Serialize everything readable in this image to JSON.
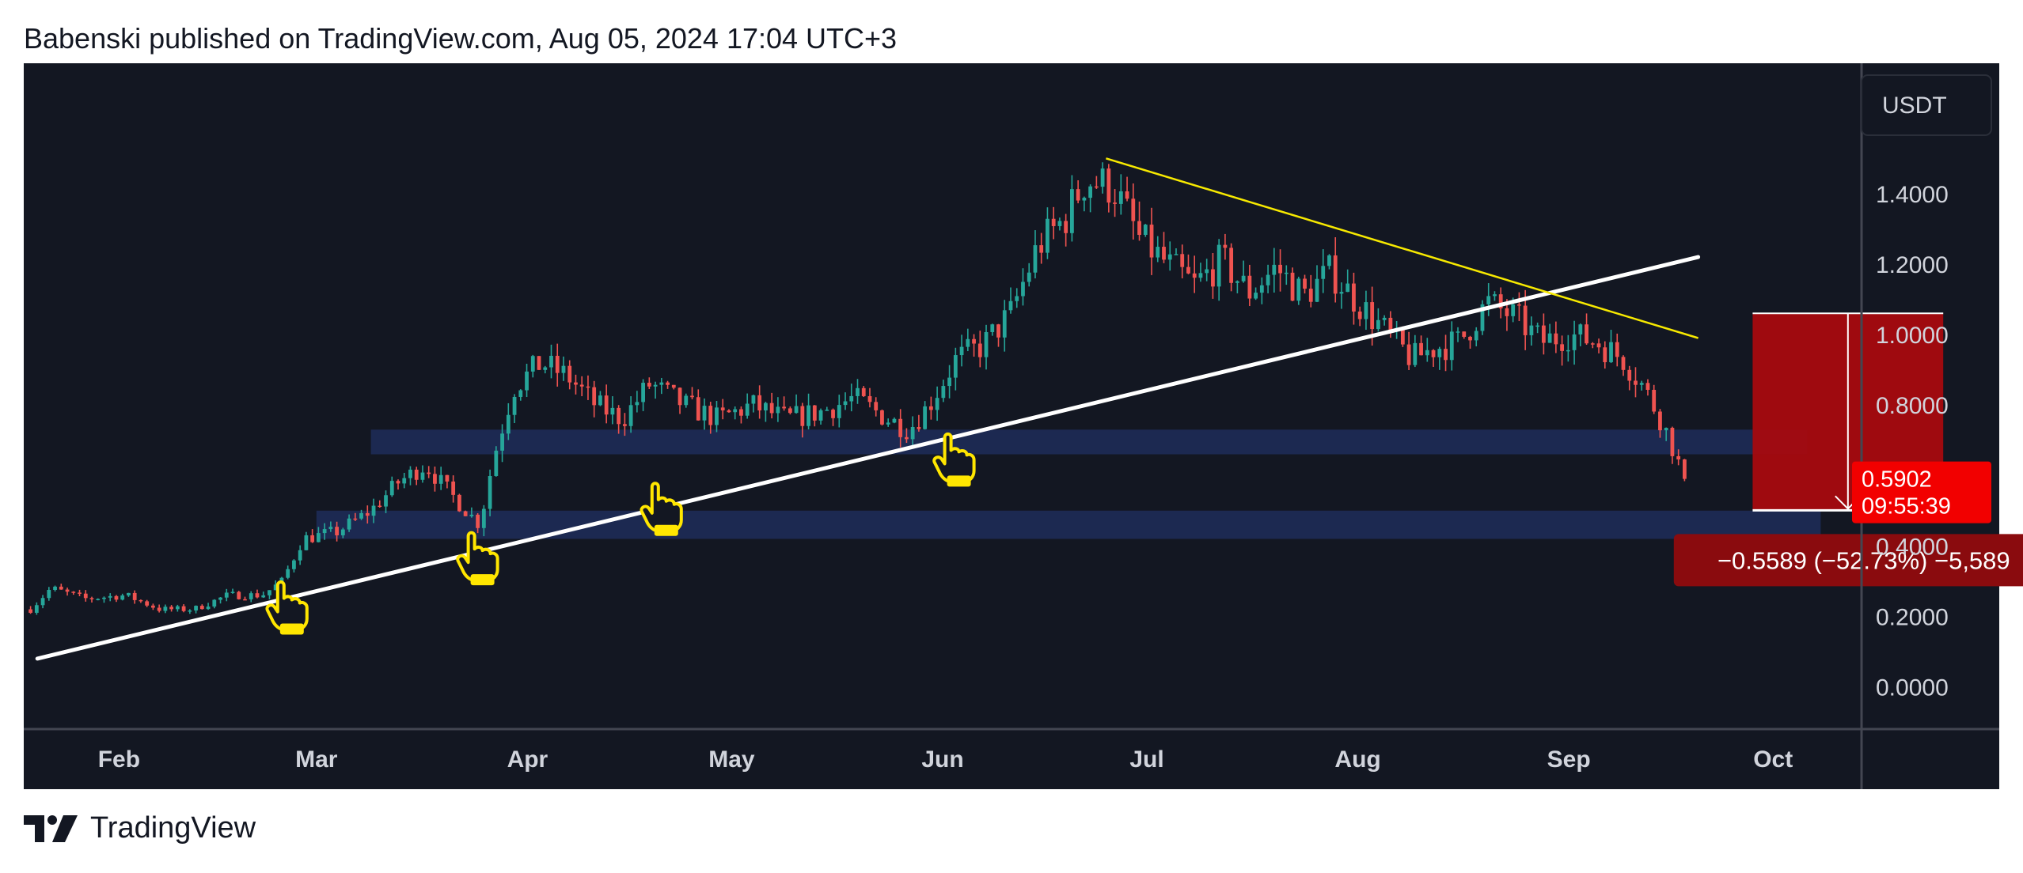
{
  "header": {
    "publish_line": "Babenski published on TradingView.com, Aug 05, 2024 17:04 UTC+3"
  },
  "footer": {
    "brand": "TradingView"
  },
  "colors": {
    "background": "#131722",
    "up_candle": "#26a69a",
    "down_candle": "#ef5350",
    "support_line": "#ffffff",
    "resistance_line": "#f7e900",
    "zone_fill": "#1e2d59",
    "target_box": "#a60a0f",
    "price_badge": "#f20000",
    "markers": "#ffe600"
  },
  "chart_data": {
    "type": "candlestick",
    "currency_label": "USDT",
    "y_axis": {
      "ticks": [
        "1.4000",
        "1.2000",
        "1.0000",
        "0.8000",
        "0.4000",
        "0.2000",
        "0.0000"
      ],
      "tick_values": [
        1.4,
        1.2,
        1.0,
        0.8,
        0.4,
        0.2,
        0.0
      ],
      "ylim": [
        -0.12,
        1.77
      ]
    },
    "x_axis": {
      "ticks": [
        "Feb",
        "Mar",
        "Apr",
        "May",
        "Jun",
        "Jul",
        "Aug",
        "Sep",
        "Oct"
      ],
      "tick_dates": [
        "2024-02-01",
        "2024-03-01",
        "2024-04-01",
        "2024-05-01",
        "2024-06-01",
        "2024-07-01",
        "2024-08-01",
        "2024-09-01",
        "2024-10-01"
      ],
      "xlim": [
        "2024-01-18",
        "2024-10-14"
      ]
    },
    "current_price": {
      "price": "0.5902",
      "countdown": "09:55:39",
      "value": 0.5902
    },
    "price_path": [
      [
        "2024-01-19",
        0.22
      ],
      [
        "2024-01-22",
        0.28
      ],
      [
        "2024-01-27",
        0.25
      ],
      [
        "2024-02-02",
        0.26
      ],
      [
        "2024-02-07",
        0.22
      ],
      [
        "2024-02-12",
        0.22
      ],
      [
        "2024-02-17",
        0.26
      ],
      [
        "2024-02-22",
        0.26
      ],
      [
        "2024-02-25",
        0.3
      ],
      [
        "2024-02-28",
        0.42
      ],
      [
        "2024-03-04",
        0.44
      ],
      [
        "2024-03-09",
        0.5
      ],
      [
        "2024-03-13",
        0.58
      ],
      [
        "2024-03-17",
        0.63
      ],
      [
        "2024-03-22",
        0.52
      ],
      [
        "2024-03-25",
        0.46
      ],
      [
        "2024-03-27",
        0.65
      ],
      [
        "2024-03-30",
        0.85
      ],
      [
        "2024-04-03",
        0.92
      ],
      [
        "2024-04-07",
        0.88
      ],
      [
        "2024-04-11",
        0.8
      ],
      [
        "2024-04-15",
        0.76
      ],
      [
        "2024-04-19",
        0.86
      ],
      [
        "2024-04-24",
        0.8
      ],
      [
        "2024-04-29",
        0.76
      ],
      [
        "2024-05-04",
        0.8
      ],
      [
        "2024-05-09",
        0.76
      ],
      [
        "2024-05-14",
        0.78
      ],
      [
        "2024-05-19",
        0.82
      ],
      [
        "2024-05-24",
        0.76
      ],
      [
        "2024-05-27",
        0.73
      ],
      [
        "2024-05-30",
        0.8
      ],
      [
        "2024-06-03",
        0.93
      ],
      [
        "2024-06-07",
        0.97
      ],
      [
        "2024-06-11",
        1.06
      ],
      [
        "2024-06-15",
        1.25
      ],
      [
        "2024-06-19",
        1.33
      ],
      [
        "2024-06-22",
        1.44
      ],
      [
        "2024-06-26",
        1.42
      ],
      [
        "2024-06-30",
        1.27
      ],
      [
        "2024-07-04",
        1.2
      ],
      [
        "2024-07-08",
        1.14
      ],
      [
        "2024-07-12",
        1.21
      ],
      [
        "2024-07-16",
        1.12
      ],
      [
        "2024-07-20",
        1.19
      ],
      [
        "2024-07-24",
        1.11
      ],
      [
        "2024-07-28",
        1.18
      ],
      [
        "2024-08-01",
        1.09
      ],
      [
        "2024-08-05",
        1.01
      ],
      [
        "2024-08-09",
        0.93
      ],
      [
        "2024-08-12",
        0.96
      ],
      [
        "2024-08-16",
        0.98
      ],
      [
        "2024-08-20",
        1.09
      ],
      [
        "2024-08-24",
        1.05
      ],
      [
        "2024-08-28",
        0.98
      ],
      [
        "2024-09-01",
        1.0
      ],
      [
        "2024-09-05",
        0.98
      ],
      [
        "2024-09-09",
        0.93
      ],
      [
        "2024-09-12",
        0.85
      ],
      [
        "2024-09-15",
        0.74
      ],
      [
        "2024-09-18",
        0.59
      ]
    ],
    "drawings": {
      "support_trendline": {
        "from": [
          "2024-01-20",
          0.08
        ],
        "to": [
          "2024-09-20",
          1.22
        ]
      },
      "resistance_trendline": {
        "from": [
          "2024-06-25",
          1.5
        ],
        "to": [
          "2024-09-20",
          0.99
        ]
      },
      "zones": [
        {
          "from_date": "2024-03-09",
          "to_date": "2024-10-06",
          "low": 0.66,
          "high": 0.73
        },
        {
          "from_date": "2024-03-01",
          "to_date": "2024-10-08",
          "low": 0.42,
          "high": 0.5
        }
      ],
      "measure_box": {
        "from_date": "2024-09-28",
        "to_date": "2024-10-26",
        "top": 1.06,
        "bottom": 0.501,
        "label": "−0.5589 (−52.73%) −5,589"
      },
      "markers": [
        [
          "2024-02-25",
          0.22
        ],
        [
          "2024-03-24",
          0.36
        ],
        [
          "2024-04-20",
          0.5
        ],
        [
          "2024-06-02",
          0.64
        ]
      ]
    }
  }
}
